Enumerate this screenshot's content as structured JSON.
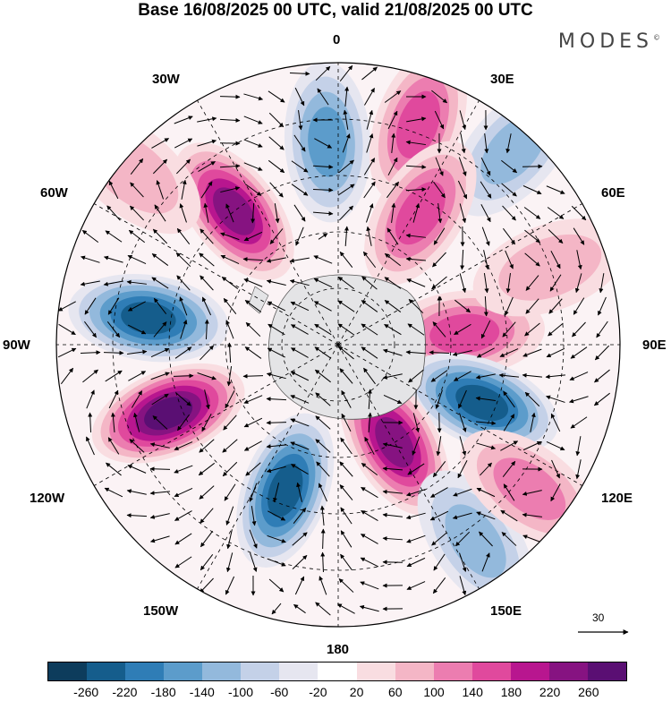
{
  "title": "Base 16/08/2025 00 UTC, valid 21/08/2025 00 UTC",
  "brand": "MODES",
  "brand_mark": "©",
  "longitude_labels": {
    "top": "0",
    "bottom": "180",
    "left": "90W",
    "right": "90E",
    "w30": "30W",
    "w60": "60W",
    "w120": "120W",
    "w150": "150W",
    "e30": "30E",
    "e60": "60E",
    "e120": "120E",
    "e150": "150E"
  },
  "reference_vector": {
    "label": "30"
  },
  "colorbar": {
    "colors": [
      "#0d3c5c",
      "#155d8c",
      "#2f7db6",
      "#5c9ccb",
      "#93b9dc",
      "#c4d1e8",
      "#e6e6f0",
      "#ffffff",
      "#f9dde1",
      "#f4b6c6",
      "#ec7db0",
      "#e0499d",
      "#b8168f",
      "#861381",
      "#5a0f73"
    ],
    "tick_labels": [
      "-260",
      "-220",
      "-180",
      "-140",
      "-100",
      "-60",
      "-20",
      "20",
      "60",
      "100",
      "140",
      "180",
      "220",
      "260"
    ]
  },
  "anomaly_centers": [
    {
      "lon": -3,
      "r": 0.72,
      "v": -150
    },
    {
      "lon": 20,
      "r": 0.83,
      "v": 160
    },
    {
      "lon": -38,
      "r": 0.6,
      "v": 240
    },
    {
      "lon": 42,
      "r": 0.93,
      "v": -130
    },
    {
      "lon": 32,
      "r": 0.55,
      "v": 150
    },
    {
      "lon": -82,
      "r": 0.68,
      "v": -240
    },
    {
      "lon": 85,
      "r": 0.45,
      "v": 170
    },
    {
      "lon": -112,
      "r": 0.65,
      "v": 260
    },
    {
      "lon": 112,
      "r": 0.55,
      "v": -250
    },
    {
      "lon": -160,
      "r": 0.55,
      "v": -230
    },
    {
      "lon": 150,
      "r": 0.4,
      "v": 230
    },
    {
      "lon": 145,
      "r": 0.85,
      "v": -100
    },
    {
      "lon": 127,
      "r": 0.85,
      "v": 110
    },
    {
      "lon": -50,
      "r": 0.95,
      "v": 60
    },
    {
      "lon": 70,
      "r": 0.8,
      "v": 60
    }
  ]
}
